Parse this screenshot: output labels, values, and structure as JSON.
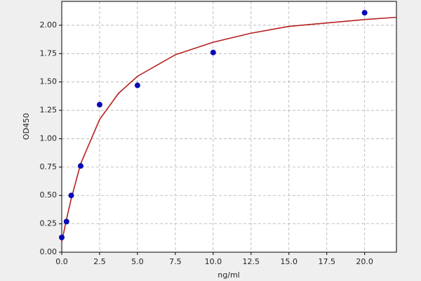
{
  "chart_data": {
    "type": "scatter",
    "xlabel": "ng/ml",
    "ylabel": "OD450",
    "xlim": [
      0,
      22.1
    ],
    "ylim": [
      0,
      2.21
    ],
    "xticks": [
      {
        "value": 0,
        "label": "0.0"
      },
      {
        "value": 2.5,
        "label": "2.5"
      },
      {
        "value": 5,
        "label": "5.0"
      },
      {
        "value": 7.5,
        "label": "7.5"
      },
      {
        "value": 10,
        "label": "10.0"
      },
      {
        "value": 12.5,
        "label": "12.5"
      },
      {
        "value": 15,
        "label": "15.0"
      },
      {
        "value": 17.5,
        "label": "17.5"
      },
      {
        "value": 20,
        "label": "20.0"
      }
    ],
    "yticks": [
      {
        "value": 0,
        "label": "0.00"
      },
      {
        "value": 0.25,
        "label": "0.25"
      },
      {
        "value": 0.5,
        "label": "0.50"
      },
      {
        "value": 0.75,
        "label": "0.75"
      },
      {
        "value": 1,
        "label": "1.00"
      },
      {
        "value": 1.25,
        "label": "1.25"
      },
      {
        "value": 1.5,
        "label": "1.50"
      },
      {
        "value": 1.75,
        "label": "1.75"
      },
      {
        "value": 2,
        "label": "2.00"
      }
    ],
    "grid": true,
    "series": [
      {
        "mode": "markers",
        "color": "#0a0ab8",
        "x": [
          0,
          0.3125,
          0.625,
          1.25,
          2.5,
          5,
          10,
          20
        ],
        "values": [
          0.13,
          0.27,
          0.5,
          0.76,
          1.3,
          1.47,
          1.76,
          2.11
        ]
      },
      {
        "mode": "line",
        "color": "#b52020",
        "x": [
          0,
          0.3125,
          0.625,
          1.25,
          2.5,
          3.75,
          5,
          7.5,
          10,
          12.5,
          15,
          17.5,
          20,
          22.1
        ],
        "values": [
          0.09,
          0.29,
          0.47,
          0.78,
          1.17,
          1.4,
          1.55,
          1.74,
          1.85,
          1.93,
          1.99,
          2.02,
          2.05,
          2.07
        ]
      }
    ]
  }
}
